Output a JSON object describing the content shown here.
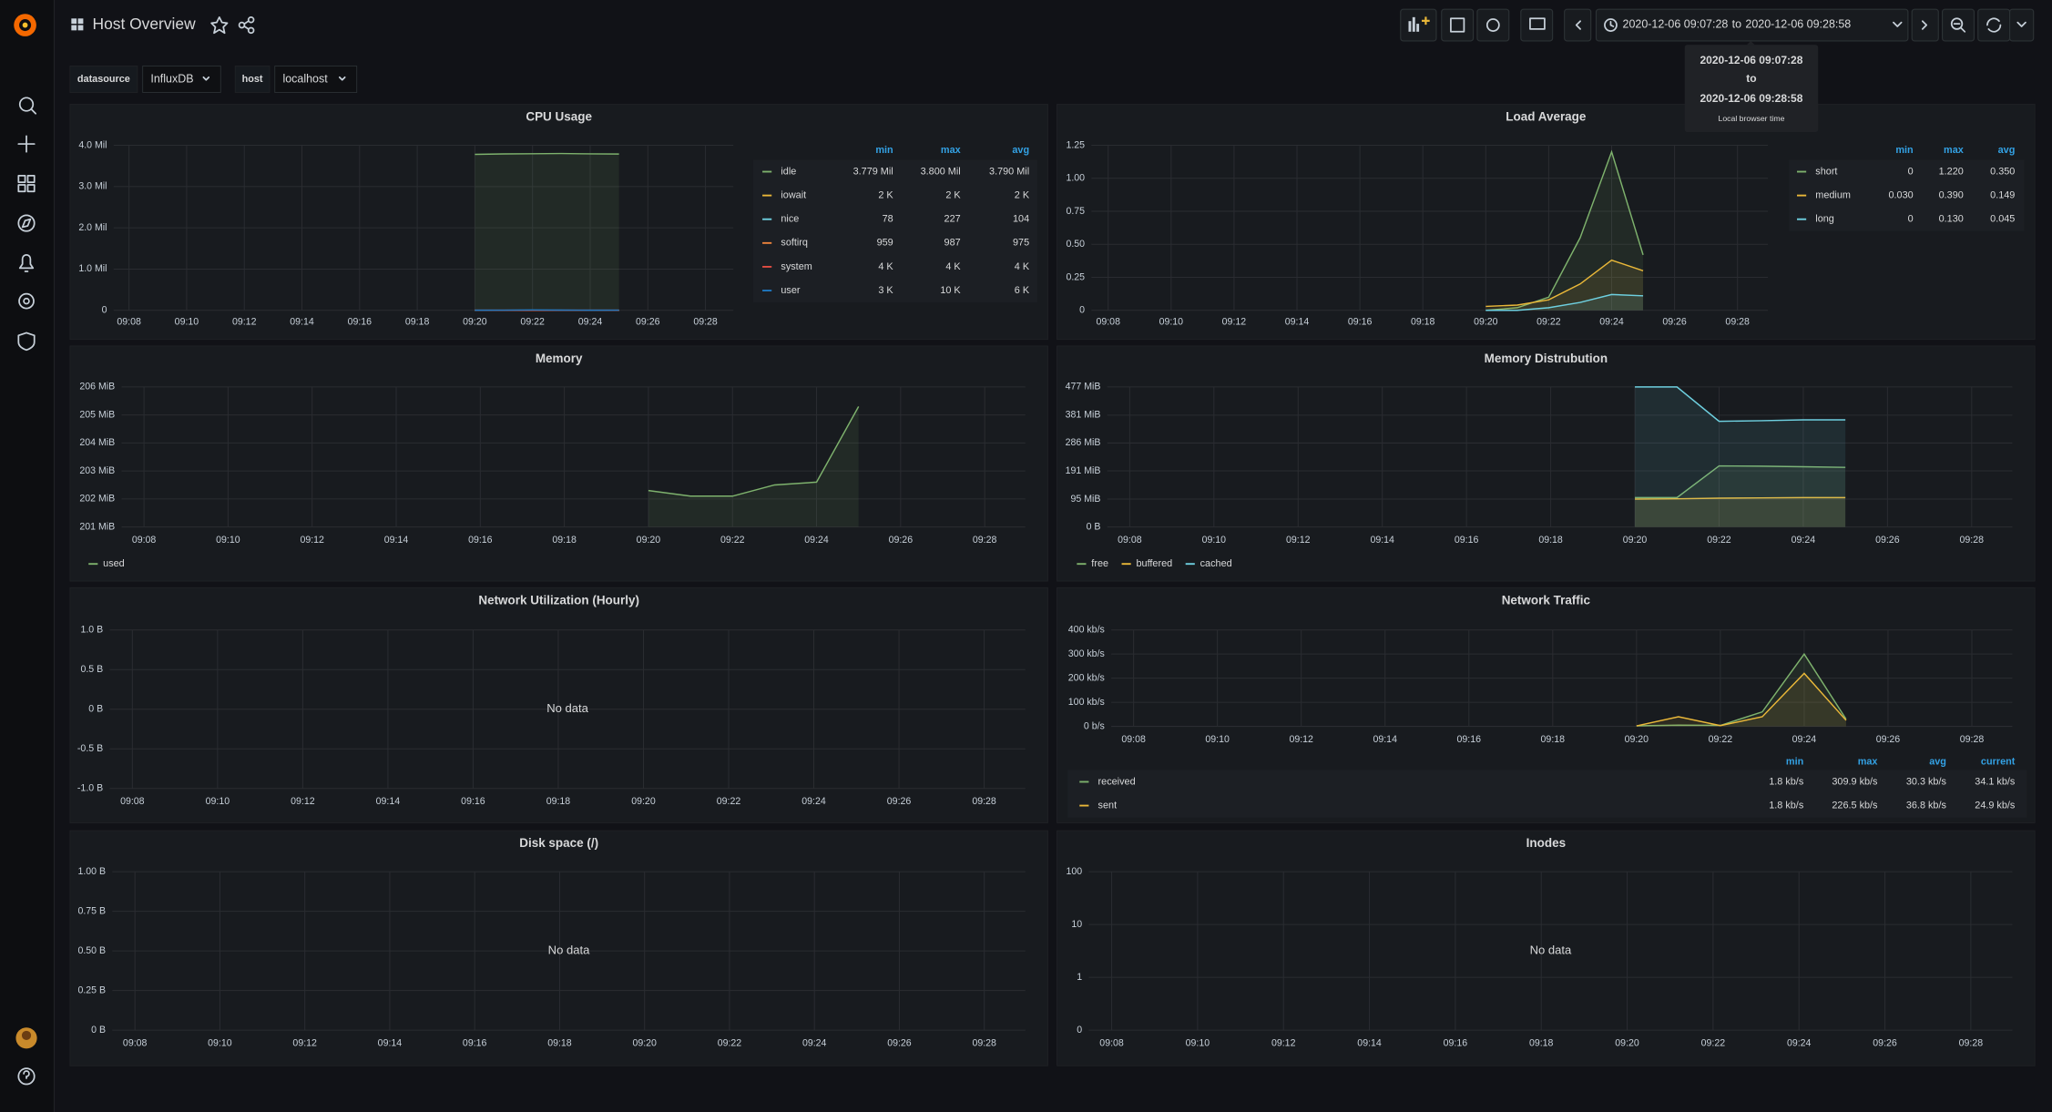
{
  "nav": {
    "title": "Host Overview"
  },
  "time_picker": {
    "from": "2020-12-06 09:07:28",
    "separator": "to",
    "to": "2020-12-06 09:28:58"
  },
  "tooltip": {
    "from": "2020-12-06 09:07:28",
    "separator": "to",
    "to": "2020-12-06 09:28:58",
    "timezone": "Local browser time"
  },
  "variables": [
    {
      "label": "datasource",
      "value": "InfluxDB"
    },
    {
      "label": "host",
      "value": "localhost"
    }
  ],
  "panels": [
    {
      "title": "CPU Usage",
      "x": [
        "09:20",
        "09:21",
        "09:22",
        "09:23",
        "09:24",
        "09:25"
      ],
      "xticks": [
        "09:08",
        "09:10",
        "09:12",
        "09:14",
        "09:16",
        "09:18",
        "09:20",
        "09:22",
        "09:24",
        "09:26",
        "09:28"
      ],
      "ylim": [
        0,
        4000000
      ],
      "yticks": [
        0,
        {
          "value": 1000000,
          "label": "1.0 Mil"
        },
        {
          "value": 2000000,
          "label": "2.0 Mil"
        },
        {
          "value": 3000000,
          "label": "3.0 Mil"
        },
        {
          "value": 4000000,
          "label": "4.0 Mil"
        }
      ],
      "legend_columns": [
        "min",
        "max",
        "avg"
      ],
      "series": [
        {
          "name": "idle",
          "color": "#7eb26d",
          "values": [
            3779000,
            3790000,
            3795000,
            3800000,
            3792000,
            3788000
          ],
          "stats": [
            "3.779 Mil",
            "3.800 Mil",
            "3.790 Mil"
          ]
        },
        {
          "name": "iowait",
          "color": "#eab839",
          "values": [
            2000,
            2000,
            2000,
            2000,
            2000,
            2000
          ],
          "stats": [
            "2 K",
            "2 K",
            "2 K"
          ]
        },
        {
          "name": "nice",
          "color": "#6ed0e0",
          "values": [
            78,
            100,
            227,
            90,
            85,
            80
          ],
          "stats": [
            "78",
            "227",
            "104"
          ]
        },
        {
          "name": "softirq",
          "color": "#ef843c",
          "values": [
            959,
            970,
            980,
            987,
            975,
            975
          ],
          "stats": [
            "959",
            "987",
            "975"
          ]
        },
        {
          "name": "system",
          "color": "#e24d42",
          "values": [
            4000,
            4000,
            4000,
            4000,
            4000,
            4000
          ],
          "stats": [
            "4 K",
            "4 K",
            "4 K"
          ]
        },
        {
          "name": "user",
          "color": "#1f78c1",
          "values": [
            3000,
            5000,
            10000,
            6000,
            4000,
            5000
          ],
          "stats": [
            "3 K",
            "10 K",
            "6 K"
          ]
        }
      ]
    },
    {
      "title": "Load Average",
      "x": [
        "09:20",
        "09:21",
        "09:22",
        "09:23",
        "09:24",
        "09:25"
      ],
      "xticks": [
        "09:08",
        "09:10",
        "09:12",
        "09:14",
        "09:16",
        "09:18",
        "09:20",
        "09:22",
        "09:24",
        "09:26",
        "09:28"
      ],
      "ylim": [
        0,
        1.25
      ],
      "yticks": [
        0,
        0.25,
        {
          "value": 0.5,
          "label": "0.50"
        },
        0.75,
        {
          "value": 1,
          "label": "1.00"
        },
        1.25
      ],
      "legend_columns": [
        "min",
        "max",
        "avg"
      ],
      "series": [
        {
          "name": "short",
          "color": "#7eb26d",
          "values": [
            0,
            0.02,
            0.1,
            0.55,
            1.2,
            0.42
          ],
          "stats": [
            "0",
            "1.220",
            "0.350"
          ]
        },
        {
          "name": "medium",
          "color": "#eab839",
          "values": [
            0.03,
            0.04,
            0.08,
            0.2,
            0.38,
            0.3
          ],
          "stats": [
            "0.030",
            "0.390",
            "0.149"
          ]
        },
        {
          "name": "long",
          "color": "#6ed0e0",
          "values": [
            0,
            0,
            0.02,
            0.06,
            0.12,
            0.11
          ],
          "stats": [
            "0",
            "0.130",
            "0.045"
          ]
        }
      ]
    },
    {
      "title": "Memory",
      "x": [
        "09:20",
        "09:21",
        "09:22",
        "09:23",
        "09:24",
        "09:25"
      ],
      "xticks": [
        "09:08",
        "09:10",
        "09:12",
        "09:14",
        "09:16",
        "09:18",
        "09:20",
        "09:22",
        "09:24",
        "09:26",
        "09:28"
      ],
      "ylim": [
        201,
        206
      ],
      "yticks": [
        {
          "value": 201,
          "label": "201 MiB"
        },
        {
          "value": 202,
          "label": "202 MiB"
        },
        {
          "value": 203,
          "label": "203 MiB"
        },
        {
          "value": 204,
          "label": "204 MiB"
        },
        {
          "value": 205,
          "label": "205 MiB"
        },
        {
          "value": 206,
          "label": "206 MiB"
        }
      ],
      "series": [
        {
          "name": "used",
          "color": "#7eb26d",
          "values": [
            202.3,
            202.1,
            202.1,
            202.5,
            202.6,
            205.3
          ]
        }
      ]
    },
    {
      "title": "Memory Distrubution",
      "x": [
        "09:20",
        "09:21",
        "09:22",
        "09:23",
        "09:24",
        "09:25"
      ],
      "xticks": [
        "09:08",
        "09:10",
        "09:12",
        "09:14",
        "09:16",
        "09:18",
        "09:20",
        "09:22",
        "09:24",
        "09:26",
        "09:28"
      ],
      "ylim": [
        0,
        477
      ],
      "yticks": [
        {
          "value": 0,
          "label": "0 B"
        },
        {
          "value": 95,
          "label": "95 MiB"
        },
        {
          "value": 191,
          "label": "191 MiB"
        },
        {
          "value": 286,
          "label": "286 MiB"
        },
        {
          "value": 381,
          "label": "381 MiB"
        },
        {
          "value": 477,
          "label": "477 MiB"
        }
      ],
      "series": [
        {
          "name": "free",
          "color": "#7eb26d",
          "values": [
            100,
            100,
            208,
            207,
            205,
            203
          ]
        },
        {
          "name": "buffered",
          "color": "#eab839",
          "values": [
            95,
            96,
            98,
            99,
            100,
            100
          ]
        },
        {
          "name": "cached",
          "color": "#6ed0e0",
          "values": [
            477,
            477,
            360,
            362,
            365,
            365
          ]
        }
      ]
    },
    {
      "title": "Network Utilization (Hourly)",
      "no_data": "No data",
      "xticks": [
        "09:08",
        "09:10",
        "09:12",
        "09:14",
        "09:16",
        "09:18",
        "09:20",
        "09:22",
        "09:24",
        "09:26",
        "09:28"
      ],
      "ylim": [
        -1,
        1
      ],
      "yticks": [
        {
          "value": -1,
          "label": "-1.0 B"
        },
        {
          "value": -0.5,
          "label": "-0.5 B"
        },
        {
          "value": 0,
          "label": "0 B"
        },
        {
          "value": 0.5,
          "label": "0.5 B"
        },
        {
          "value": 1,
          "label": "1.0 B"
        }
      ]
    },
    {
      "title": "Network Traffic",
      "x": [
        "09:20",
        "09:21",
        "09:22",
        "09:23",
        "09:24",
        "09:25"
      ],
      "xticks": [
        "09:08",
        "09:10",
        "09:12",
        "09:14",
        "09:16",
        "09:18",
        "09:20",
        "09:22",
        "09:24",
        "09:26",
        "09:28"
      ],
      "ylim": [
        0,
        400
      ],
      "yticks": [
        {
          "value": 0,
          "label": "0 b/s"
        },
        {
          "value": 100,
          "label": "100 kb/s"
        },
        {
          "value": 200,
          "label": "200 kb/s"
        },
        {
          "value": 300,
          "label": "300 kb/s"
        },
        {
          "value": 400,
          "label": "400 kb/s"
        }
      ],
      "legend_columns": [
        "min",
        "max",
        "avg",
        "current"
      ],
      "series": [
        {
          "name": "received",
          "color": "#7eb26d",
          "values": [
            2,
            5,
            4,
            60,
            300,
            30
          ],
          "stats": [
            "1.8 kb/s",
            "309.9 kb/s",
            "30.3 kb/s",
            "34.1 kb/s"
          ]
        },
        {
          "name": "sent",
          "color": "#eab839",
          "values": [
            2,
            40,
            3,
            40,
            220,
            25
          ],
          "stats": [
            "1.8 kb/s",
            "226.5 kb/s",
            "36.8 kb/s",
            "24.9 kb/s"
          ]
        }
      ]
    },
    {
      "title": "Disk space (/)",
      "no_data": "No data",
      "xticks": [
        "09:08",
        "09:10",
        "09:12",
        "09:14",
        "09:16",
        "09:18",
        "09:20",
        "09:22",
        "09:24",
        "09:26",
        "09:28"
      ],
      "ylim": [
        0,
        1
      ],
      "yticks": [
        {
          "value": 0,
          "label": "0 B"
        },
        {
          "value": 0.25,
          "label": "0.25 B"
        },
        {
          "value": 0.5,
          "label": "0.50 B"
        },
        {
          "value": 0.75,
          "label": "0.75 B"
        },
        {
          "value": 1,
          "label": "1.00 B"
        }
      ]
    },
    {
      "title": "Inodes",
      "no_data": "No data",
      "log": true,
      "xticks": [
        "09:08",
        "09:10",
        "09:12",
        "09:14",
        "09:16",
        "09:18",
        "09:20",
        "09:22",
        "09:24",
        "09:26",
        "09:28"
      ],
      "ylim": [
        0,
        100
      ],
      "yticks": [
        0,
        1,
        10,
        100
      ]
    }
  ]
}
